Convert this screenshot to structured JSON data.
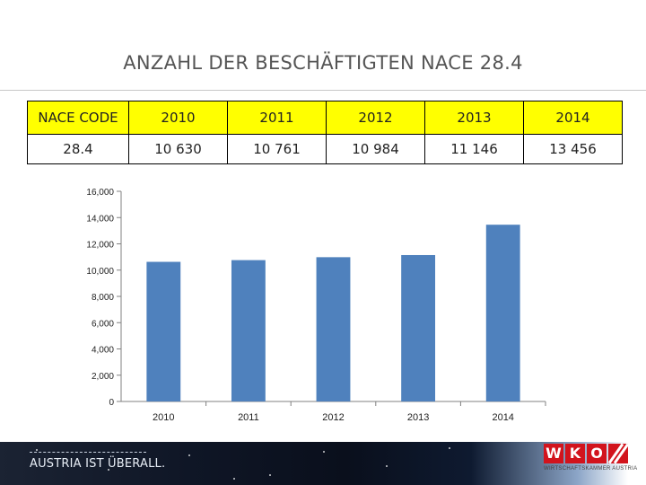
{
  "page": {
    "title": "ANZAHL DER BESCHÄFTIGTEN NACE 28.4",
    "slogan": "AUSTRIA IST ÜBERALL.",
    "logo": {
      "letters": [
        "W",
        "K",
        "O"
      ],
      "tagline": "WIRTSCHAFTSKAMMER AUSTRIA"
    },
    "accent": "#ffff00",
    "brand_red": "#d2141d"
  },
  "table": {
    "header": [
      "NACE CODE",
      "2010",
      "2011",
      "2012",
      "2013",
      "2014"
    ],
    "row": [
      "28.4",
      "10 630",
      "10 761",
      "10 984",
      "11 146",
      "13 456"
    ]
  },
  "chart_data": {
    "type": "bar",
    "categories": [
      "2010",
      "2011",
      "2012",
      "2013",
      "2014"
    ],
    "values": [
      10630,
      10761,
      10984,
      11146,
      13456
    ],
    "ylim": [
      0,
      16000
    ],
    "yticks": [
      0,
      2000,
      4000,
      6000,
      8000,
      10000,
      12000,
      14000,
      16000
    ],
    "ytick_labels": [
      "0",
      "2,000",
      "4,000",
      "6,000",
      "8,000",
      "10,000",
      "12,000",
      "14,000",
      "16,000"
    ],
    "title": "",
    "xlabel": "",
    "ylabel": "",
    "grid": false,
    "legend": "none",
    "bar_color": "#4f81bd"
  }
}
